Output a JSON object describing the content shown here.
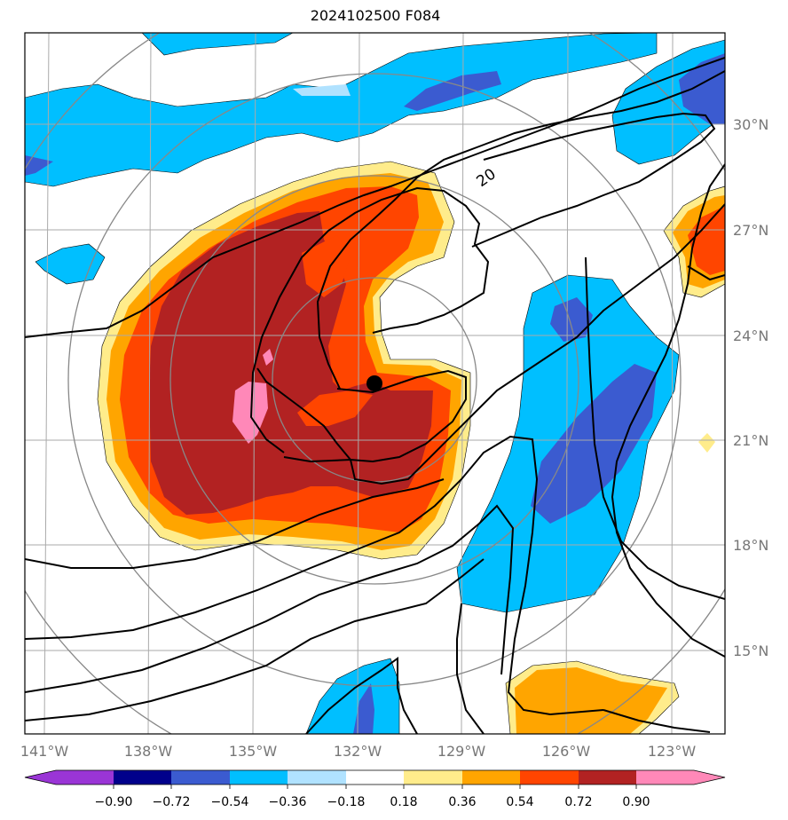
{
  "title": "2024102500 F084",
  "contour_label": "20",
  "lon_labels": [
    "141°W",
    "138°W",
    "135°W",
    "132°W",
    "129°W",
    "126°W",
    "123°W"
  ],
  "lat_labels": [
    "30°N",
    "27°N",
    "24°N",
    "21°N",
    "18°N",
    "15°N"
  ],
  "colorbar": {
    "tick_labels": [
      "−0.90",
      "−0.72",
      "−0.54",
      "−0.36",
      "−0.18",
      "0.18",
      "0.36",
      "0.54",
      "0.72",
      "0.90"
    ],
    "colors": [
      "#9a35d6",
      "#00008b",
      "#3b5bd0",
      "#00bfff",
      "#b0e2ff",
      "#ffffff",
      "#ffec8b",
      "#ffa500",
      "#ff4500",
      "#b22222",
      "#ff88b8"
    ]
  },
  "colors": {
    "dark_red": "#b22222",
    "red_orange": "#ff4500",
    "orange": "#ffa500",
    "light_yellow": "#ffec8b",
    "light_blue": "#b0e2ff",
    "sky_blue": "#00bfff",
    "royal_blue": "#3b5bd0",
    "navy": "#00008b",
    "pink": "#ff88b8",
    "grid": "#aaaaaa",
    "rings": "#888888"
  },
  "storm_center": {
    "lon": "131.6°W",
    "lat": "22.6°N"
  }
}
